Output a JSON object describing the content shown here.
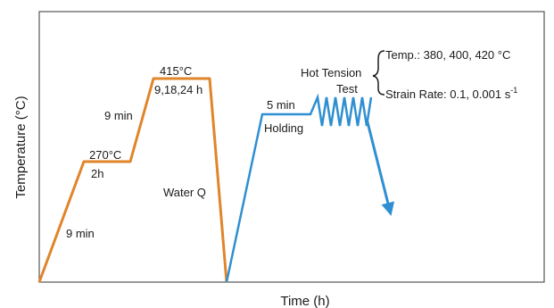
{
  "axes": {
    "x_label": "Time (h)",
    "y_label": "Temperature (°C)"
  },
  "heat_treatment": {
    "color": "#e0852a",
    "ramp1_time": "9 min",
    "hold1_temp": "270°C",
    "hold1_time": "2h",
    "ramp2_time": "9 min",
    "hold2_temp": "415°C",
    "hold2_time": "9,18,24 h",
    "quench": "Water Q"
  },
  "hot_tension": {
    "color": "#2f8fd1",
    "hold_time": "5 min",
    "hold_label": "Holding",
    "title_line1": "Hot Tension",
    "title_line2": "Test",
    "temp_spec": "Temp.: 380, 400, 420 °C",
    "strain_rate_spec": "Strain Rate: 0.1, 0.001 s",
    "strain_rate_exponent": "-1"
  }
}
